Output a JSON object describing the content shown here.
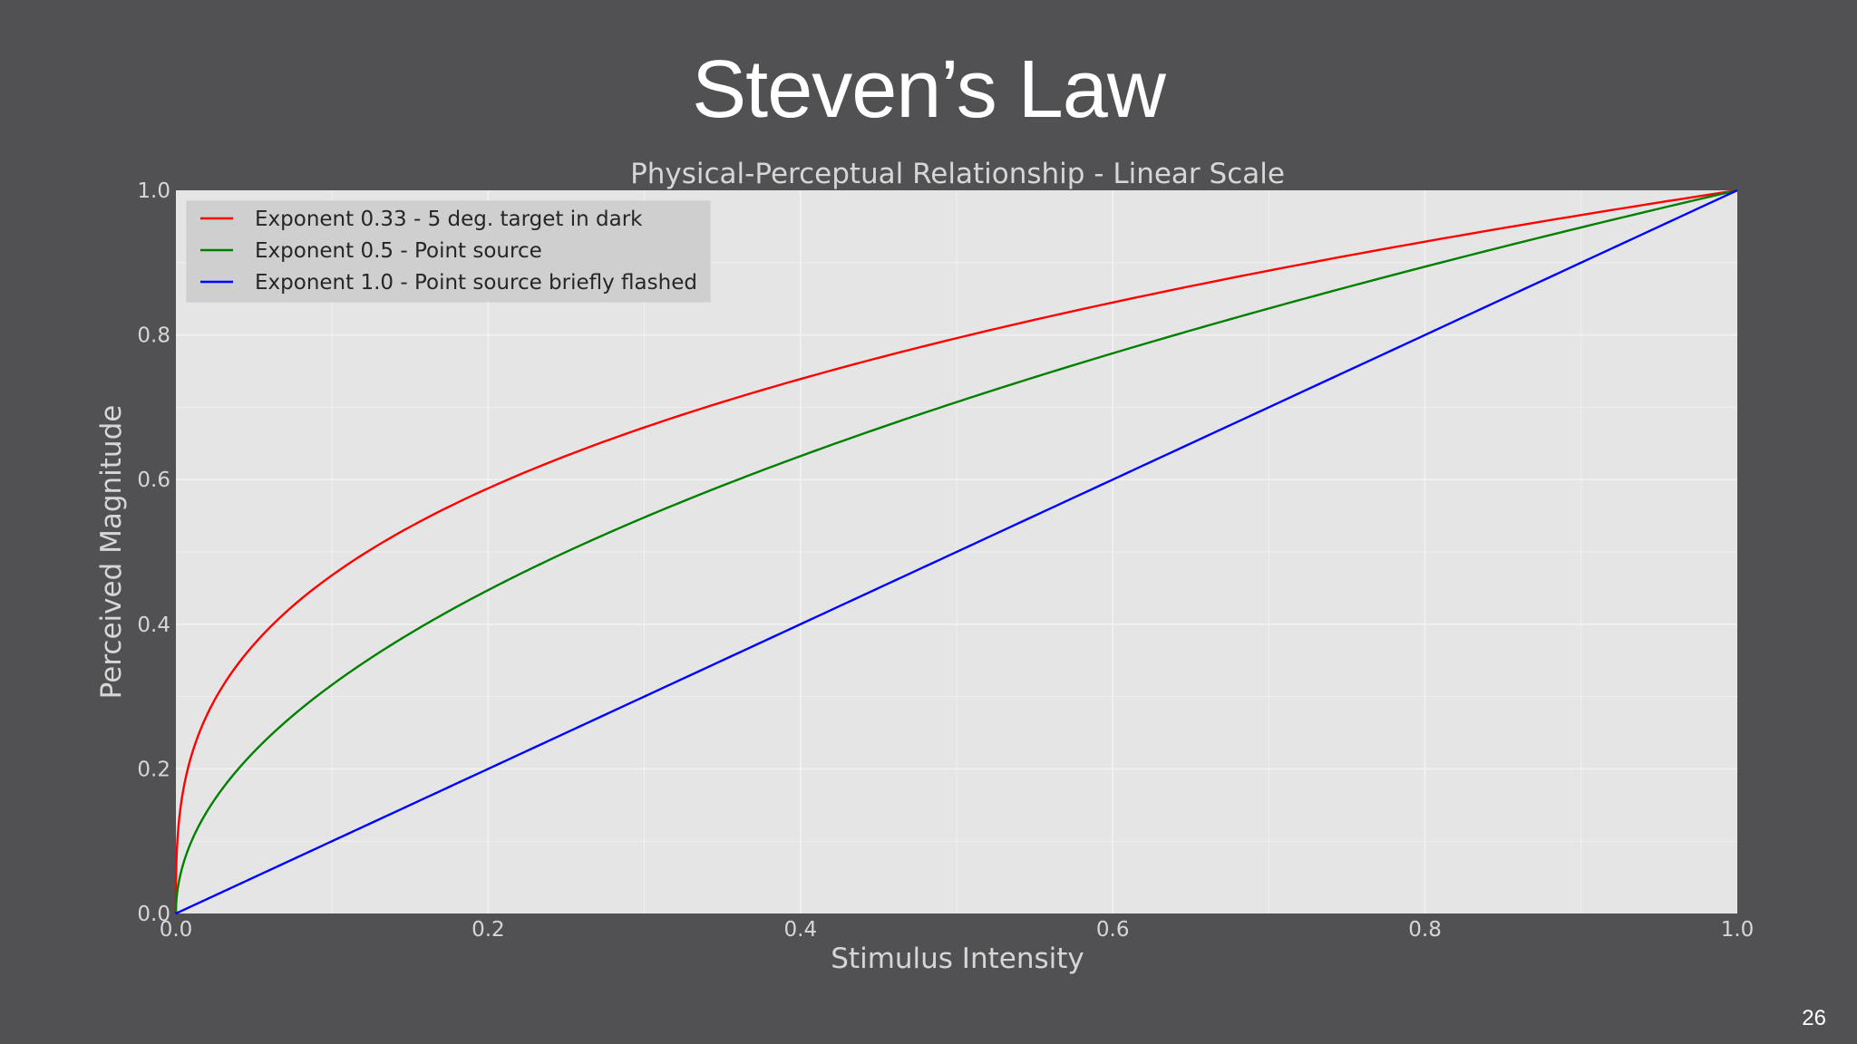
{
  "slide": {
    "title": "Steven’s Law",
    "page_number": "26"
  },
  "colors": {
    "background": "#515153",
    "plot_background": "#e5e5e5",
    "grid": "#f2f2f2",
    "legend_background": "#cfcfcf"
  },
  "chart_data": {
    "type": "line",
    "title": "Physical-Perceptual Relationship - Linear Scale",
    "xlabel": "Stimulus Intensity",
    "ylabel": "Perceived Magnitude",
    "xlim": [
      0.0,
      1.0
    ],
    "ylim": [
      0.0,
      1.0
    ],
    "x_ticks": [
      "0.0",
      "0.2",
      "0.4",
      "0.6",
      "0.8",
      "1.0"
    ],
    "y_ticks": [
      "0.0",
      "0.2",
      "0.4",
      "0.6",
      "0.8",
      "1.0"
    ],
    "grid": true,
    "legend_position": "top-left",
    "x": [
      0.0,
      0.001,
      0.005,
      0.01,
      0.02,
      0.03,
      0.05,
      0.075,
      0.1,
      0.15,
      0.2,
      0.25,
      0.3,
      0.35,
      0.4,
      0.45,
      0.5,
      0.55,
      0.6,
      0.65,
      0.7,
      0.75,
      0.8,
      0.85,
      0.9,
      0.95,
      1.0
    ],
    "series": [
      {
        "name": "Exponent 0.33 - 5 deg. target in dark",
        "exponent": 0.33,
        "color": "#ff0000",
        "values": [
          0.0,
          0.102,
          0.174,
          0.219,
          0.275,
          0.314,
          0.372,
          0.425,
          0.468,
          0.535,
          0.588,
          0.633,
          0.672,
          0.707,
          0.739,
          0.768,
          0.795,
          0.821,
          0.845,
          0.868,
          0.889,
          0.909,
          0.929,
          0.948,
          0.966,
          0.983,
          1.0
        ]
      },
      {
        "name": "Exponent 0.5 - Point source",
        "exponent": 0.5,
        "color": "#008000",
        "values": [
          0.0,
          0.032,
          0.071,
          0.1,
          0.141,
          0.173,
          0.224,
          0.274,
          0.316,
          0.387,
          0.447,
          0.5,
          0.548,
          0.592,
          0.632,
          0.671,
          0.707,
          0.742,
          0.775,
          0.806,
          0.837,
          0.866,
          0.894,
          0.922,
          0.949,
          0.975,
          1.0
        ]
      },
      {
        "name": "Exponent 1.0 - Point source briefly flashed",
        "exponent": 1.0,
        "color": "#0000ff",
        "values": [
          0.0,
          0.001,
          0.005,
          0.01,
          0.02,
          0.03,
          0.05,
          0.075,
          0.1,
          0.15,
          0.2,
          0.25,
          0.3,
          0.35,
          0.4,
          0.45,
          0.5,
          0.55,
          0.6,
          0.65,
          0.7,
          0.75,
          0.8,
          0.85,
          0.9,
          0.95,
          1.0
        ]
      }
    ]
  }
}
